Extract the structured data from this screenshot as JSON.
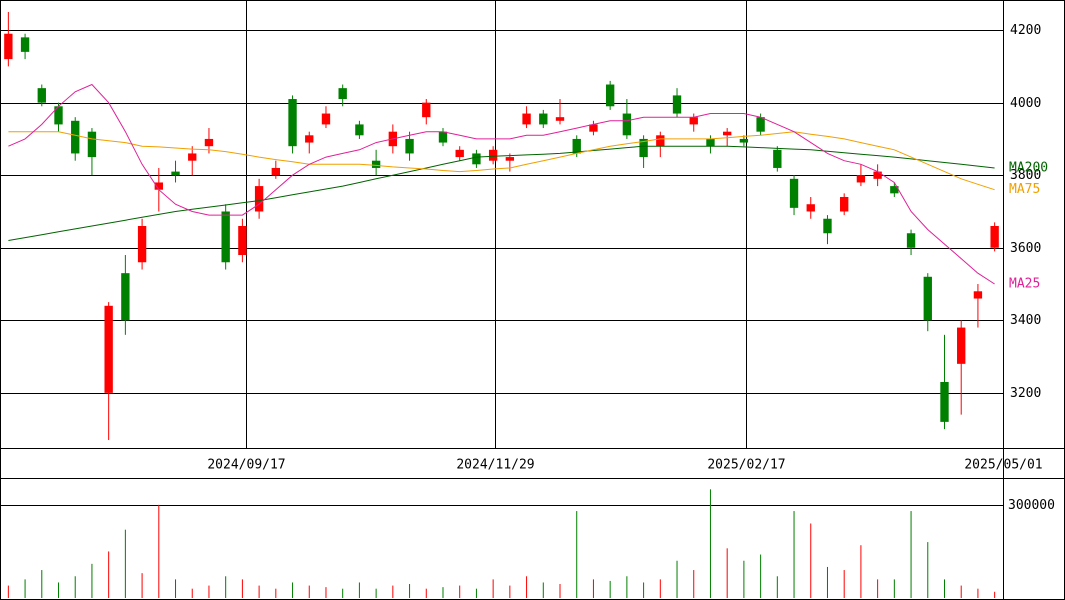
{
  "chart_data": {
    "type": "candlestick",
    "xlim": [
      0,
      60
    ],
    "xticks": [
      {
        "value": 14.7,
        "label": "2024/09/17"
      },
      {
        "value": 29.6,
        "label": "2024/11/29"
      },
      {
        "value": 44.6,
        "label": "2025/02/17"
      },
      {
        "value": 60,
        "label": "2025/05/01"
      }
    ],
    "ylim": [
      3048,
      4283
    ],
    "yticks": [
      3200,
      3400,
      3600,
      3800,
      4000,
      4200
    ],
    "up_color": "#ff0000",
    "down_color": "#008000",
    "open": [
      4120,
      4180,
      4040,
      3990,
      3950,
      3920,
      3200,
      3530,
      3560,
      3760,
      3810,
      3840,
      3880,
      3700,
      3580,
      3700,
      3800,
      4010,
      3890,
      3940,
      4040,
      3940,
      3840,
      3880,
      3900,
      3960,
      3920,
      3850,
      3860,
      3840,
      3840,
      3940,
      3970,
      3950,
      3900,
      3920,
      4050,
      3970,
      3900,
      3880,
      4020,
      3940,
      3900,
      3910,
      3900,
      3960,
      3870,
      3790,
      3700,
      3680,
      3700,
      3780,
      3790,
      3770,
      3640,
      3520,
      3230,
      3280,
      3460,
      3600
    ],
    "high": [
      4250,
      4190,
      4050,
      4000,
      3960,
      3930,
      3450,
      3580,
      3680,
      3820,
      3840,
      3880,
      3930,
      3720,
      3680,
      3790,
      3840,
      4020,
      3920,
      3990,
      4050,
      3950,
      3870,
      3940,
      3920,
      4010,
      3930,
      3880,
      3870,
      3880,
      3860,
      3990,
      3980,
      4010,
      3910,
      3950,
      4060,
      4010,
      3910,
      3920,
      4040,
      3970,
      3910,
      3930,
      3910,
      3970,
      3880,
      3800,
      3740,
      3690,
      3750,
      3830,
      3830,
      3780,
      3650,
      3530,
      3360,
      3400,
      3500,
      3670
    ],
    "low": [
      4100,
      4120,
      3990,
      3920,
      3840,
      3800,
      3070,
      3360,
      3540,
      3700,
      3780,
      3800,
      3860,
      3540,
      3560,
      3680,
      3790,
      3860,
      3860,
      3930,
      3990,
      3900,
      3800,
      3860,
      3840,
      3940,
      3880,
      3840,
      3820,
      3830,
      3810,
      3930,
      3930,
      3940,
      3850,
      3910,
      3980,
      3900,
      3820,
      3850,
      3960,
      3920,
      3860,
      3880,
      3880,
      3910,
      3810,
      3690,
      3680,
      3610,
      3690,
      3770,
      3770,
      3740,
      3580,
      3370,
      3100,
      3140,
      3380,
      3590
    ],
    "close": [
      4190,
      4140,
      4000,
      3940,
      3860,
      3850,
      3440,
      3400,
      3660,
      3780,
      3800,
      3860,
      3900,
      3560,
      3660,
      3770,
      3820,
      3880,
      3910,
      3970,
      4010,
      3910,
      3820,
      3920,
      3860,
      4000,
      3890,
      3870,
      3830,
      3870,
      3850,
      3970,
      3940,
      3960,
      3860,
      3940,
      3990,
      3910,
      3850,
      3910,
      3970,
      3960,
      3880,
      3920,
      3890,
      3920,
      3820,
      3710,
      3720,
      3640,
      3740,
      3800,
      3810,
      3750,
      3600,
      3400,
      3120,
      3380,
      3480,
      3660
    ],
    "series": [
      {
        "name": "MA200",
        "color": "#006400",
        "values": [
          3620,
          3628,
          3636,
          3644,
          3652,
          3660,
          3668,
          3676,
          3684,
          3692,
          3700,
          3706,
          3712,
          3718,
          3724,
          3730,
          3738,
          3746,
          3754,
          3762,
          3770,
          3780,
          3790,
          3800,
          3810,
          3820,
          3830,
          3840,
          3850,
          3852,
          3854,
          3856,
          3858,
          3860,
          3864,
          3868,
          3872,
          3876,
          3880,
          3880,
          3880,
          3880,
          3880,
          3880,
          3878,
          3876,
          3874,
          3872,
          3870,
          3866,
          3862,
          3858,
          3854,
          3850,
          3845,
          3840,
          3835,
          3830,
          3825,
          3820
        ]
      },
      {
        "name": "MA75",
        "color": "#f0a000",
        "values": [
          3920,
          3920,
          3920,
          3920,
          3910,
          3900,
          3895,
          3890,
          3880,
          3878,
          3875,
          3872,
          3870,
          3865,
          3858,
          3850,
          3843,
          3837,
          3830,
          3830,
          3830,
          3830,
          3827,
          3823,
          3820,
          3817,
          3813,
          3810,
          3813,
          3817,
          3820,
          3830,
          3840,
          3850,
          3860,
          3870,
          3880,
          3887,
          3893,
          3900,
          3900,
          3900,
          3900,
          3903,
          3907,
          3910,
          3915,
          3920,
          3913,
          3907,
          3900,
          3890,
          3880,
          3870,
          3850,
          3830,
          3810,
          3790,
          3775,
          3760
        ]
      },
      {
        "name": "MA25",
        "color": "#e0209a",
        "values": [
          3880,
          3900,
          3940,
          3990,
          4030,
          4050,
          4000,
          3920,
          3830,
          3760,
          3720,
          3700,
          3690,
          3690,
          3690,
          3720,
          3760,
          3800,
          3830,
          3850,
          3860,
          3870,
          3890,
          3900,
          3910,
          3920,
          3920,
          3910,
          3900,
          3900,
          3900,
          3910,
          3910,
          3920,
          3930,
          3940,
          3950,
          3950,
          3960,
          3960,
          3960,
          3960,
          3970,
          3970,
          3970,
          3960,
          3940,
          3920,
          3890,
          3860,
          3840,
          3830,
          3810,
          3780,
          3700,
          3650,
          3610,
          3570,
          3530,
          3500
        ]
      }
    ],
    "volume": [
      40000,
      60000,
      90000,
      50000,
      70000,
      110000,
      150000,
      220000,
      80000,
      300000,
      60000,
      30000,
      40000,
      70000,
      60000,
      40000,
      30000,
      50000,
      40000,
      35000,
      30000,
      50000,
      30000,
      40000,
      45000,
      30000,
      35000,
      40000,
      30000,
      60000,
      40000,
      70000,
      50000,
      45000,
      280000,
      60000,
      55000,
      70000,
      50000,
      60000,
      120000,
      90000,
      350000,
      160000,
      120000,
      140000,
      70000,
      280000,
      240000,
      100000,
      90000,
      170000,
      60000,
      60000,
      280000,
      180000,
      60000,
      40000,
      30000,
      20000
    ],
    "volume_ylim": [
      0,
      380000
    ],
    "volume_yticks": [
      300000
    ]
  }
}
